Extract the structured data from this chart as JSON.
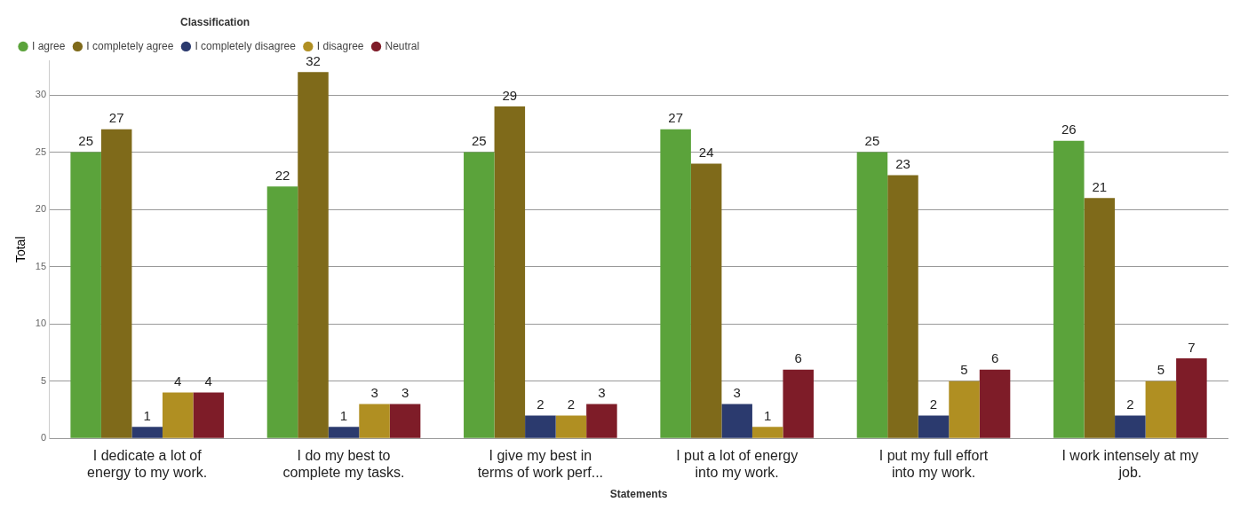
{
  "chart_data": {
    "type": "bar",
    "xlabel": "Statements",
    "ylabel": "Total",
    "legend_title": "Classification",
    "categories": [
      "I dedicate a lot of energy to my work.",
      "I do my best to complete my tasks.",
      "I give my best in terms of work perf...",
      "I put a lot of energy into my work.",
      "I put my full effort into my work.",
      "I work intensely at my job."
    ],
    "series": [
      {
        "name": "I agree",
        "color": "#5ba33b",
        "values": [
          25,
          22,
          25,
          27,
          25,
          26
        ]
      },
      {
        "name": "I completely agree",
        "color": "#7f6a1a",
        "values": [
          27,
          32,
          29,
          24,
          23,
          21
        ]
      },
      {
        "name": "I completely disagree",
        "color": "#2b3a6e",
        "values": [
          1,
          1,
          2,
          3,
          2,
          2
        ]
      },
      {
        "name": "I disagree",
        "color": "#b08f22",
        "values": [
          4,
          3,
          2,
          1,
          5,
          5
        ]
      },
      {
        "name": "Neutral",
        "color": "#7e1c28",
        "values": [
          4,
          3,
          3,
          6,
          6,
          7
        ]
      }
    ],
    "ylim": [
      0,
      33
    ],
    "yticks": [
      0,
      5,
      10,
      15,
      20,
      25,
      30
    ],
    "grid": "y",
    "legend": "top left",
    "data_labels": true
  }
}
